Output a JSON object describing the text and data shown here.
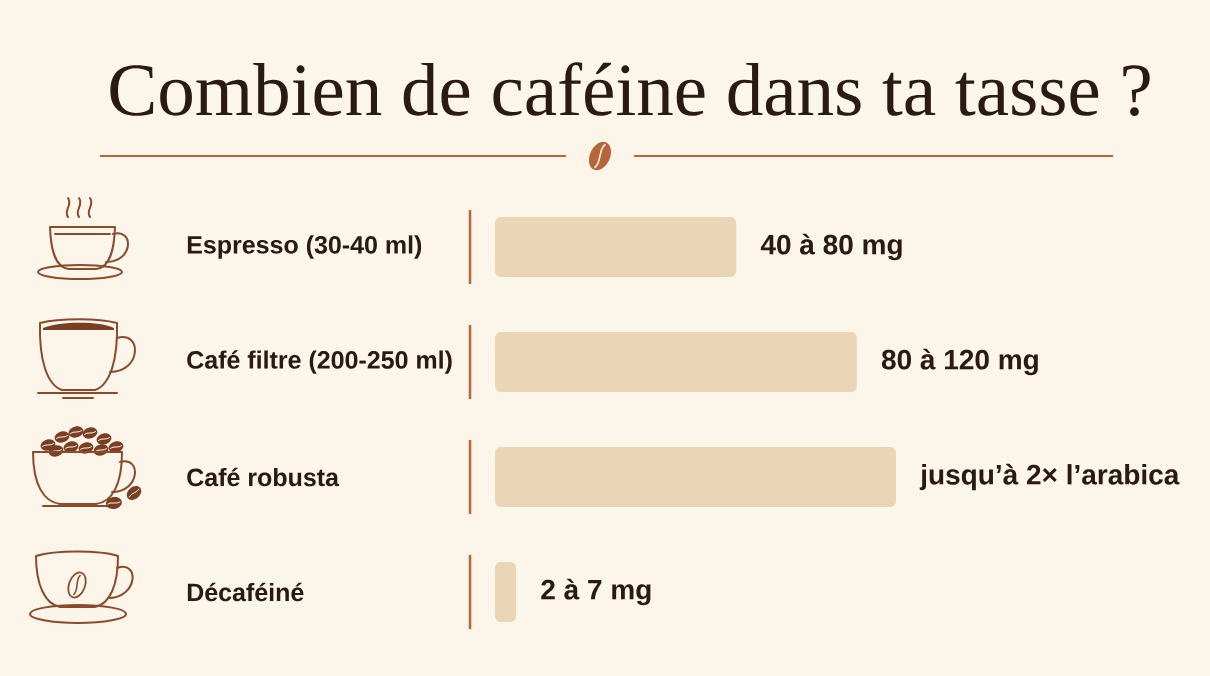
{
  "chart_data": {
    "type": "bar",
    "orientation": "horizontal",
    "title": "Combien de caféine dans ta tasse ?",
    "categories": [
      "Espresso (30-40 ml)",
      "Café filtre (200-250 ml)",
      "Café robusta",
      "Décaféiné"
    ],
    "values": [
      80,
      120,
      133,
      7
    ],
    "color": "#ead6b6",
    "value_labels": [
      "40 à 80 mg",
      "80 à 120 mg",
      "jusqu’à 2× l’arabica",
      "2 à 7 mg"
    ]
  }
}
